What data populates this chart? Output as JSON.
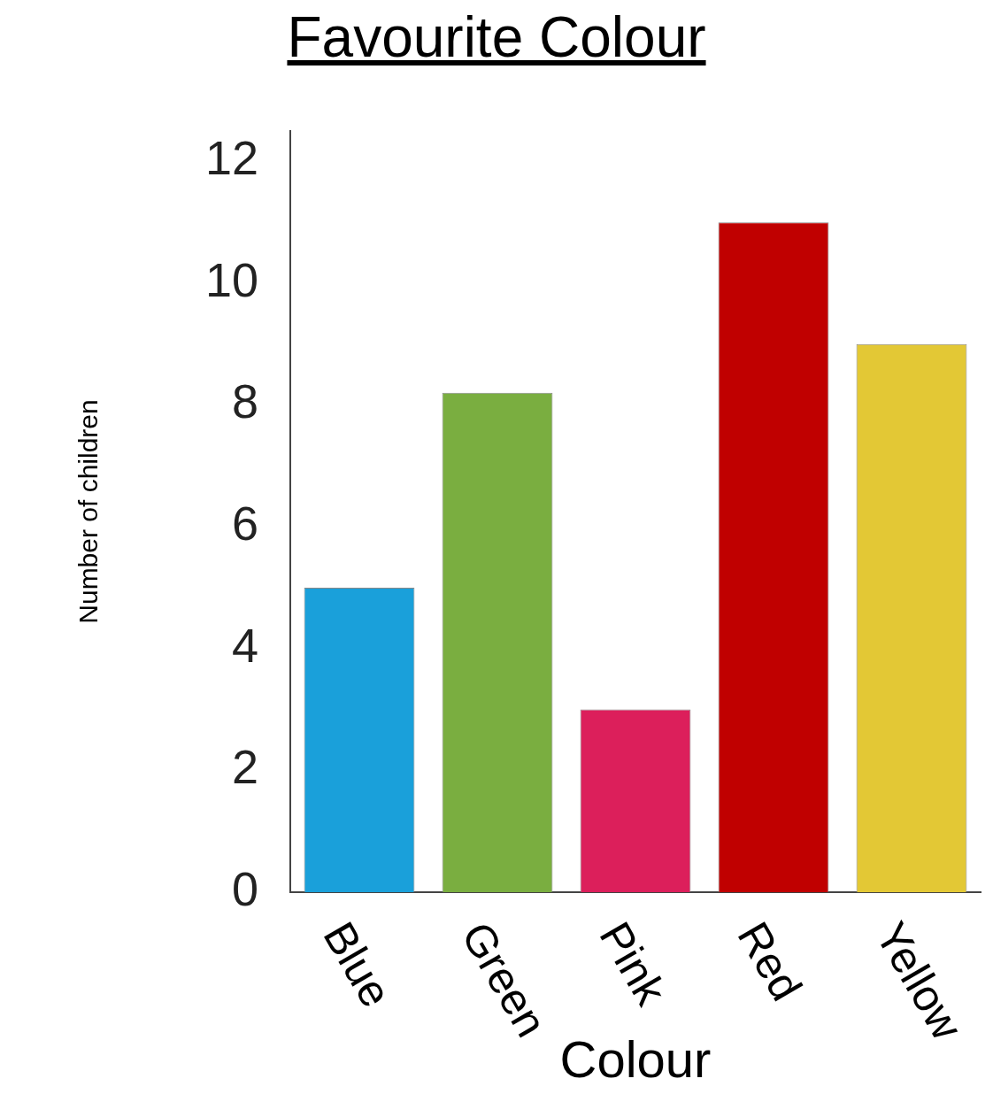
{
  "chart_data": {
    "type": "bar",
    "title": "Favourite Colour",
    "xlabel": "Colour",
    "ylabel": "Number of children",
    "categories": [
      "Blue",
      "Green",
      "Pink",
      "Red",
      "Yellow"
    ],
    "values": [
      5,
      8.2,
      3,
      11,
      9
    ],
    "colors": [
      "#1aa0da",
      "#7aae40",
      "#dc1f5b",
      "#c00000",
      "#e3c835"
    ],
    "ylim": [
      0,
      12.5
    ],
    "yticks": [
      0,
      2,
      4,
      6,
      8,
      10,
      12
    ],
    "grid": false,
    "legend": false
  }
}
